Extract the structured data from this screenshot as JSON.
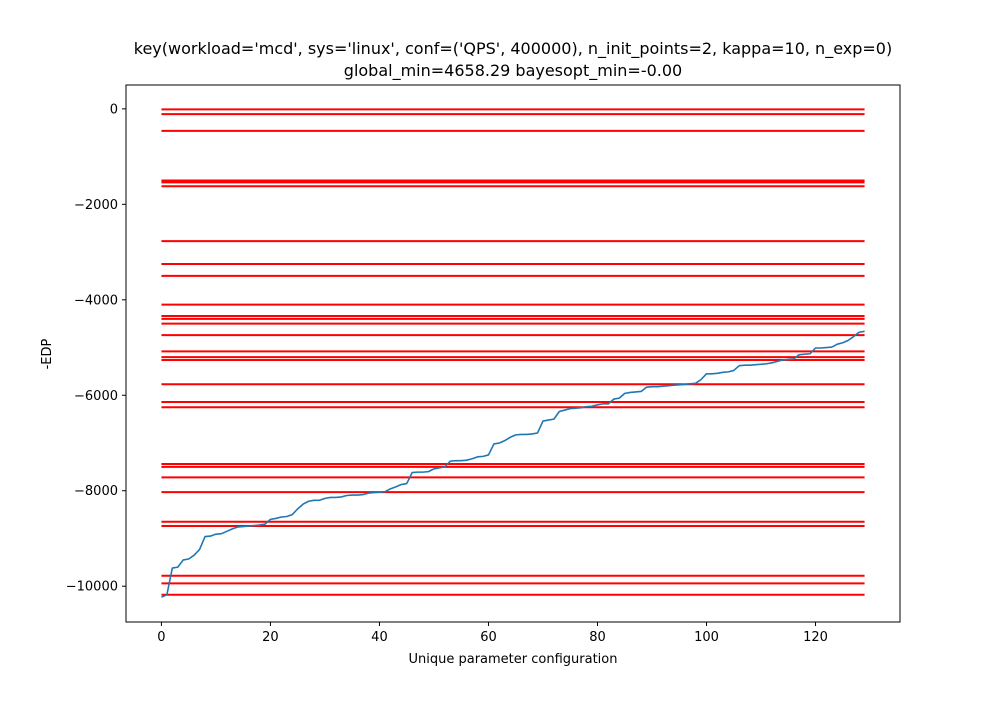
{
  "chart_data": {
    "type": "line",
    "title_line1": "key(workload='mcd', sys='linux', conf=('QPS', 400000), n_init_points=2, kappa=10, n_exp=0)",
    "title_line2": "global_min=4658.29 bayesopt_min=-0.00",
    "xlabel": "Unique parameter configuration",
    "ylabel": "-EDP",
    "xlim": [
      -6.5,
      135.5
    ],
    "ylim": [
      -10750,
      500
    ],
    "xticks": [
      0,
      20,
      40,
      60,
      80,
      100,
      120
    ],
    "yticks": [
      0,
      -2000,
      -4000,
      -6000,
      -8000,
      -10000
    ],
    "xtick_labels": [
      "0",
      "20",
      "40",
      "60",
      "80",
      "100",
      "120"
    ],
    "ytick_labels": [
      "0",
      "−2000",
      "−4000",
      "−6000",
      "−8000",
      "−10000"
    ],
    "hlines": {
      "color": "#ff0000",
      "xmin": 0,
      "xmax": 129,
      "y": [
        -10,
        -110,
        -460,
        -1500,
        -1540,
        -1620,
        -2770,
        -3250,
        -3500,
        -4100,
        -4340,
        -4400,
        -4500,
        -4740,
        -5080,
        -5200,
        -5260,
        -5770,
        -6140,
        -6250,
        -7440,
        -7500,
        -7720,
        -8030,
        -8650,
        -8740,
        -9780,
        -9940,
        -10180
      ]
    },
    "series": [
      {
        "color": "#1f77b4",
        "points": [
          [
            0,
            -10230
          ],
          [
            1,
            -10180
          ],
          [
            2,
            -9620
          ],
          [
            3,
            -9600
          ],
          [
            4,
            -9450
          ],
          [
            5,
            -9430
          ],
          [
            6,
            -9350
          ],
          [
            7,
            -9230
          ],
          [
            8,
            -8960
          ],
          [
            9,
            -8950
          ],
          [
            10,
            -8910
          ],
          [
            11,
            -8900
          ],
          [
            12,
            -8850
          ],
          [
            13,
            -8800
          ],
          [
            14,
            -8760
          ],
          [
            15,
            -8750
          ],
          [
            16,
            -8740
          ],
          [
            17,
            -8730
          ],
          [
            18,
            -8720
          ],
          [
            19,
            -8700
          ],
          [
            20,
            -8600
          ],
          [
            21,
            -8580
          ],
          [
            22,
            -8550
          ],
          [
            23,
            -8540
          ],
          [
            24,
            -8500
          ],
          [
            25,
            -8380
          ],
          [
            26,
            -8280
          ],
          [
            27,
            -8220
          ],
          [
            28,
            -8200
          ],
          [
            29,
            -8200
          ],
          [
            30,
            -8160
          ],
          [
            31,
            -8140
          ],
          [
            32,
            -8140
          ],
          [
            33,
            -8130
          ],
          [
            34,
            -8100
          ],
          [
            35,
            -8090
          ],
          [
            36,
            -8090
          ],
          [
            37,
            -8080
          ],
          [
            38,
            -8050
          ],
          [
            39,
            -8040
          ],
          [
            40,
            -8030
          ],
          [
            41,
            -8020
          ],
          [
            42,
            -7960
          ],
          [
            43,
            -7920
          ],
          [
            44,
            -7870
          ],
          [
            45,
            -7850
          ],
          [
            46,
            -7620
          ],
          [
            47,
            -7610
          ],
          [
            48,
            -7610
          ],
          [
            49,
            -7600
          ],
          [
            50,
            -7540
          ],
          [
            51,
            -7520
          ],
          [
            52,
            -7500
          ],
          [
            53,
            -7380
          ],
          [
            54,
            -7370
          ],
          [
            55,
            -7370
          ],
          [
            56,
            -7360
          ],
          [
            57,
            -7330
          ],
          [
            58,
            -7290
          ],
          [
            59,
            -7280
          ],
          [
            60,
            -7250
          ],
          [
            61,
            -7020
          ],
          [
            62,
            -7000
          ],
          [
            63,
            -6950
          ],
          [
            64,
            -6880
          ],
          [
            65,
            -6830
          ],
          [
            66,
            -6820
          ],
          [
            67,
            -6820
          ],
          [
            68,
            -6810
          ],
          [
            69,
            -6790
          ],
          [
            70,
            -6540
          ],
          [
            71,
            -6520
          ],
          [
            72,
            -6500
          ],
          [
            73,
            -6340
          ],
          [
            74,
            -6310
          ],
          [
            75,
            -6280
          ],
          [
            76,
            -6270
          ],
          [
            77,
            -6260
          ],
          [
            78,
            -6240
          ],
          [
            79,
            -6230
          ],
          [
            80,
            -6200
          ],
          [
            81,
            -6180
          ],
          [
            82,
            -6180
          ],
          [
            83,
            -6080
          ],
          [
            84,
            -6060
          ],
          [
            85,
            -5960
          ],
          [
            86,
            -5940
          ],
          [
            87,
            -5930
          ],
          [
            88,
            -5920
          ],
          [
            89,
            -5830
          ],
          [
            90,
            -5820
          ],
          [
            91,
            -5820
          ],
          [
            92,
            -5810
          ],
          [
            93,
            -5800
          ],
          [
            94,
            -5790
          ],
          [
            95,
            -5780
          ],
          [
            96,
            -5770
          ],
          [
            97,
            -5760
          ],
          [
            98,
            -5750
          ],
          [
            99,
            -5670
          ],
          [
            100,
            -5550
          ],
          [
            101,
            -5550
          ],
          [
            102,
            -5540
          ],
          [
            103,
            -5520
          ],
          [
            104,
            -5510
          ],
          [
            105,
            -5480
          ],
          [
            106,
            -5380
          ],
          [
            107,
            -5370
          ],
          [
            108,
            -5370
          ],
          [
            109,
            -5360
          ],
          [
            110,
            -5350
          ],
          [
            111,
            -5340
          ],
          [
            112,
            -5320
          ],
          [
            113,
            -5290
          ],
          [
            114,
            -5260
          ],
          [
            115,
            -5250
          ],
          [
            116,
            -5240
          ],
          [
            117,
            -5150
          ],
          [
            118,
            -5140
          ],
          [
            119,
            -5130
          ],
          [
            120,
            -5010
          ],
          [
            121,
            -5010
          ],
          [
            122,
            -5000
          ],
          [
            123,
            -4990
          ],
          [
            124,
            -4930
          ],
          [
            125,
            -4900
          ],
          [
            126,
            -4850
          ],
          [
            127,
            -4770
          ],
          [
            128,
            -4680
          ],
          [
            129,
            -4660
          ]
        ]
      }
    ],
    "grid": false,
    "legend": "none"
  }
}
